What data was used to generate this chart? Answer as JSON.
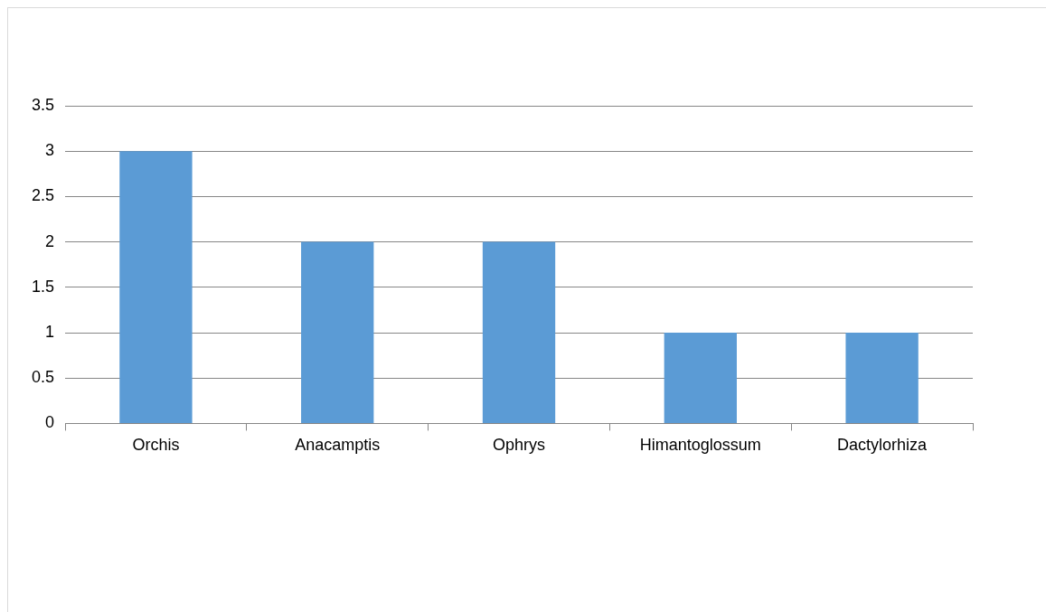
{
  "chart_data": {
    "type": "bar",
    "categories": [
      "Orchis",
      "Anacamptis",
      "Ophrys",
      "Himantoglossum",
      "Dactylorhiza"
    ],
    "values": [
      3,
      2,
      2,
      1,
      1
    ],
    "color": "#5b9bd5",
    "ylim": [
      0,
      3.5
    ],
    "yticks": [
      0,
      0.5,
      1,
      1.5,
      2,
      2.5,
      3,
      3.5
    ],
    "grid": "y",
    "legend": false
  }
}
